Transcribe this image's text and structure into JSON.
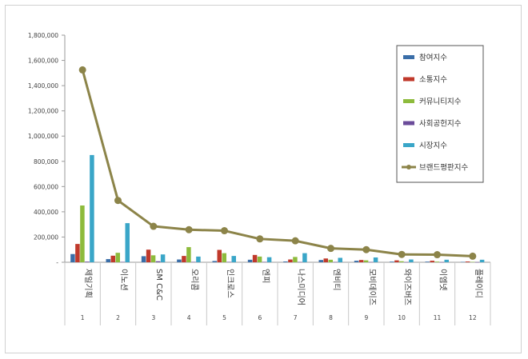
{
  "chart_data": {
    "type": "bar",
    "title": "",
    "xlabel": "",
    "ylabel": "",
    "ylim": [
      0,
      1800000
    ],
    "yticks": [
      0,
      200000,
      400000,
      600000,
      800000,
      1000000,
      1200000,
      1400000,
      1600000,
      1800000
    ],
    "ytick_labels": [
      "-",
      "200,000",
      "400,000",
      "600,000",
      "800,000",
      "1,000,000",
      "1,200,000",
      "1,400,000",
      "1,600,000",
      "1,800,000"
    ],
    "grid": false,
    "legend_position": "top-right",
    "categories": [
      "제일기획",
      "이노션",
      "SM C&C",
      "오리콤",
      "인크로스",
      "엔피",
      "나스미디어",
      "엔비티",
      "모비데이즈",
      "와이즈버즈",
      "이엠넷",
      "플레이디"
    ],
    "ranks": [
      "1",
      "2",
      "3",
      "4",
      "5",
      "6",
      "7",
      "8",
      "9",
      "10",
      "11",
      "12"
    ],
    "series": [
      {
        "name": "참여지수",
        "color": "#3a6ea8",
        "kind": "bar",
        "values": [
          65000,
          25000,
          48000,
          22000,
          10000,
          20000,
          6000,
          18000,
          12000,
          5000,
          5000,
          3000
        ]
      },
      {
        "name": "소통지수",
        "color": "#c0392b",
        "kind": "bar",
        "values": [
          145000,
          52000,
          100000,
          50000,
          98000,
          58000,
          22000,
          30000,
          18000,
          15000,
          12000,
          6000
        ]
      },
      {
        "name": "커뮤니티지수",
        "color": "#8dbb3c",
        "kind": "bar",
        "values": [
          450000,
          75000,
          55000,
          120000,
          72000,
          45000,
          42000,
          20000,
          15000,
          8000,
          5000,
          3000
        ]
      },
      {
        "name": "사회공헌지수",
        "color": "#6b4c9a",
        "kind": "bar",
        "values": [
          5000,
          3000,
          8000,
          3000,
          3000,
          3000,
          2000,
          2000,
          2000,
          1000,
          1000,
          1000
        ]
      },
      {
        "name": "시장지수",
        "color": "#3aa6c8",
        "kind": "bar",
        "values": [
          850000,
          310000,
          62000,
          45000,
          50000,
          40000,
          72000,
          35000,
          38000,
          22000,
          20000,
          20000
        ]
      },
      {
        "name": "브랜드평판지수",
        "color": "#8c8449",
        "kind": "line",
        "values": [
          1525000,
          490000,
          285000,
          258000,
          250000,
          185000,
          170000,
          110000,
          100000,
          62000,
          60000,
          48000
        ]
      }
    ]
  }
}
